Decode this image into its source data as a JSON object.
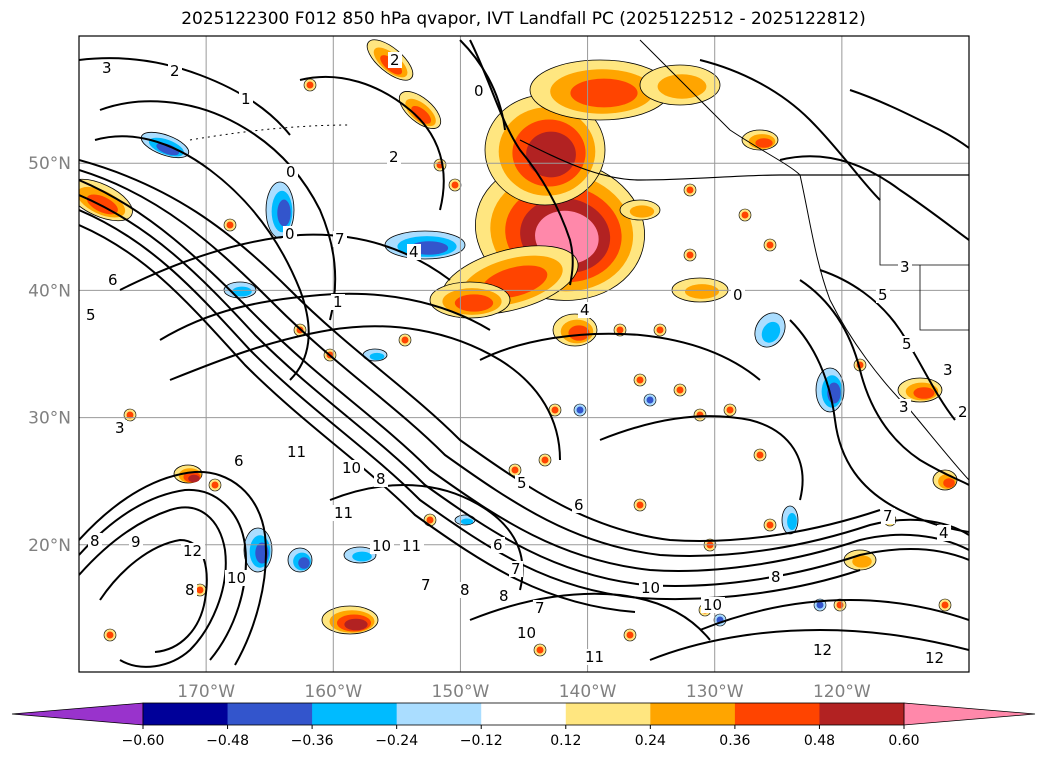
{
  "title": "2025122300 F012 850 hPa qvapor, IVT Landfall PC (2025122512 - 2025122812)",
  "map": {
    "lon_ticks": [
      {
        "lon": -170,
        "label": "170°W"
      },
      {
        "lon": -160,
        "label": "160°W"
      },
      {
        "lon": -150,
        "label": "150°W"
      },
      {
        "lon": -140,
        "label": "140°W"
      },
      {
        "lon": -130,
        "label": "130°W"
      },
      {
        "lon": -120,
        "label": "120°W"
      }
    ],
    "lat_ticks": [
      {
        "lat": 20,
        "label": "20°N"
      },
      {
        "lat": 30,
        "label": "30°N"
      },
      {
        "lat": 40,
        "label": "40°N"
      },
      {
        "lat": 50,
        "label": "50°N"
      }
    ],
    "extent": {
      "lon": [
        -180,
        -110
      ],
      "lat": [
        10,
        60
      ]
    },
    "grid": true,
    "contour_labels": [
      "3",
      "2",
      "1",
      "2",
      "0",
      "2",
      "0",
      "0",
      "1",
      "7",
      "6",
      "5",
      "4",
      "5",
      "0",
      "4",
      "3",
      "5",
      "3",
      "3",
      "2",
      "3",
      "6",
      "11",
      "10",
      "8",
      "9",
      "8",
      "12",
      "10",
      "11",
      "10",
      "11",
      "7",
      "8",
      "8",
      "6",
      "5",
      "6",
      "7",
      "7",
      "10",
      "10",
      "11",
      "12",
      "12",
      "4",
      "7",
      "8",
      "10",
      "8"
    ]
  },
  "colorbar": {
    "ticks": [
      "−0.60",
      "−0.48",
      "−0.36",
      "−0.24",
      "−0.12",
      "0.12",
      "0.24",
      "0.36",
      "0.48",
      "0.60"
    ],
    "colors": [
      "#9933cc",
      "#000099",
      "#3355cc",
      "#00bbff",
      "#aaddff",
      "#ffffff",
      "#ffe680",
      "#ffa500",
      "#ff4400",
      "#b22222",
      "#ff88aa"
    ],
    "extend": "both"
  },
  "style": {
    "warm": [
      "#ffe680",
      "#ffa500",
      "#ff4400",
      "#b22222",
      "#ff88aa"
    ],
    "cool": [
      "#aaddff",
      "#00bbff",
      "#3355cc",
      "#000099"
    ]
  }
}
